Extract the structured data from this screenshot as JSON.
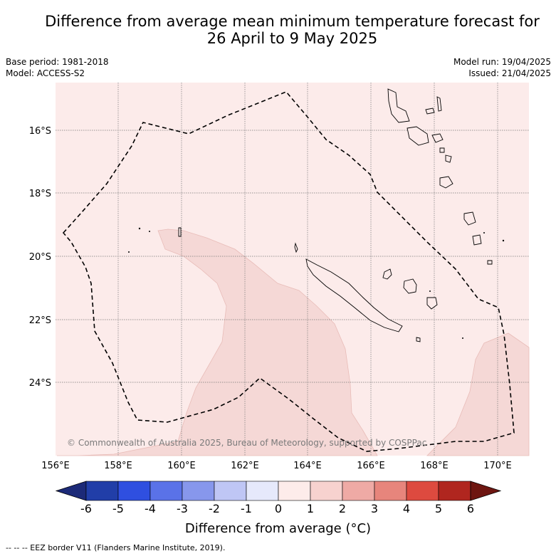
{
  "title_line1": "Difference from average mean minimum temperature forecast for",
  "title_line2": "26 April to 9 May 2025",
  "base_period": "Base period: 1981-2018",
  "model": "Model: ACCESS-S2",
  "model_run": "Model run: 19/04/2025",
  "issued": "Issued: 21/04/2025",
  "copyright": "© Commonwealth of Australia 2025, Bureau of Meteorology, supported by COSPPac",
  "lat_labels": [
    "16°S",
    "18°S",
    "20°S",
    "22°S",
    "24°S"
  ],
  "lon_labels": [
    "156°E",
    "158°E",
    "160°E",
    "162°E",
    "164°E",
    "166°E",
    "168°E",
    "170°E"
  ],
  "colorbar": {
    "title": "Difference from average (°C)",
    "ticks": [
      "-6",
      "-5",
      "-4",
      "-3",
      "-2",
      "-1",
      "0",
      "1",
      "2",
      "3",
      "4",
      "5",
      "6"
    ],
    "colors": [
      "#1c2a78",
      "#213ea8",
      "#2f4fe0",
      "#5a72e8",
      "#8797ec",
      "#bfc6f5",
      "#e6e9fb",
      "#fdecea",
      "#f7d2cf",
      "#efaaa5",
      "#e7857c",
      "#dd4a3f",
      "#b0261f",
      "#6e1611"
    ]
  },
  "map_colors": {
    "background": "#fcebea",
    "anomaly_1_2": "#f5d8d6"
  },
  "footer": "--  --  -- EEZ border V11 (Flanders Marine Institute, 2019)."
}
